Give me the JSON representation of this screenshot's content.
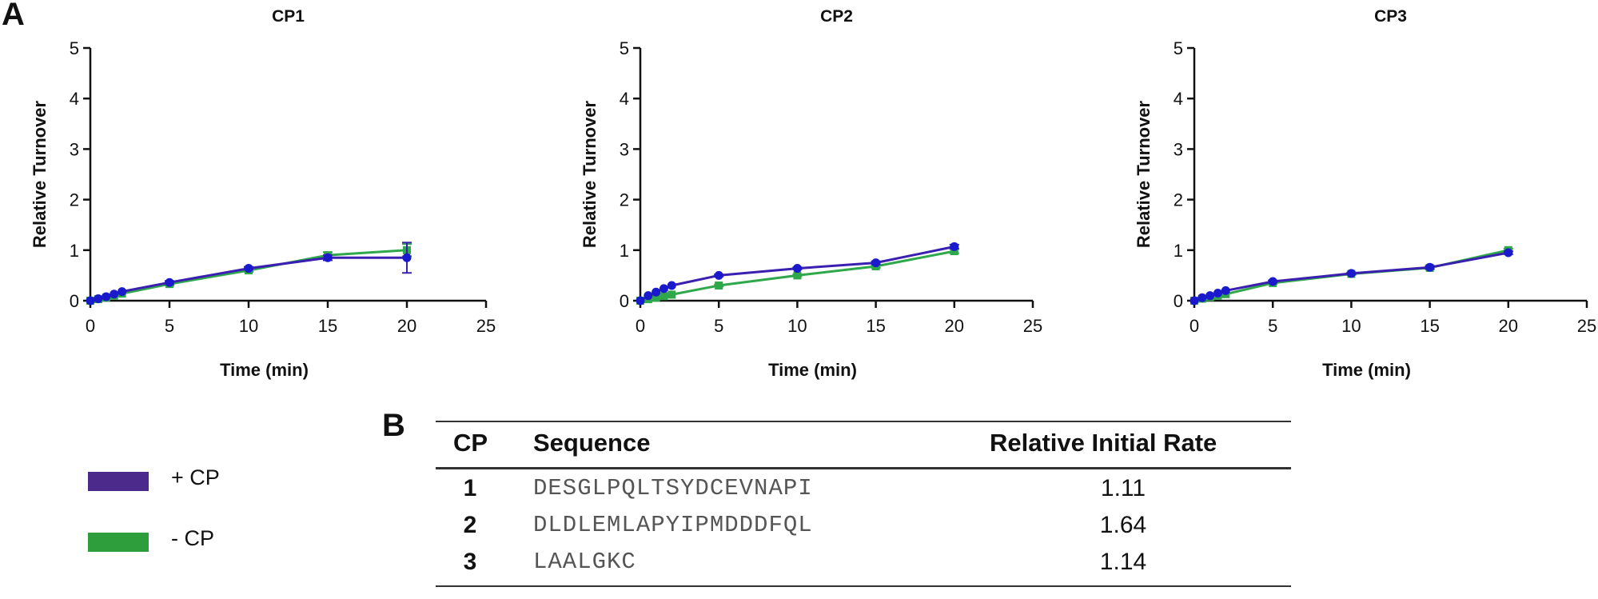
{
  "panel_a_label": "A",
  "panel_b_label": "B",
  "colors": {
    "plus_cp": "#3a1fb0",
    "minus_cp": "#2ea84a",
    "plus_cp_marker": "#1a1acc",
    "legend_plus": "#4b2a8c",
    "legend_minus": "#2e9e3c"
  },
  "chart_data": [
    {
      "type": "line",
      "title": "CP1",
      "xlabel": "Time (min)",
      "ylabel": "Relative Turnover",
      "xlim": [
        0,
        25
      ],
      "ylim": [
        0,
        5
      ],
      "xticks": [
        0,
        5,
        10,
        15,
        20,
        25
      ],
      "yticks": [
        0,
        1,
        2,
        3,
        4,
        5
      ],
      "series": [
        {
          "name": "- CP",
          "color": "#2ea84a",
          "x": [
            0,
            0.5,
            1,
            1.5,
            2,
            5,
            10,
            15,
            20
          ],
          "y": [
            0,
            0.03,
            0.06,
            0.1,
            0.14,
            0.33,
            0.6,
            0.9,
            1.0
          ],
          "err": [
            0,
            0,
            0,
            0,
            0,
            0.03,
            0.03,
            0.06,
            0.12
          ]
        },
        {
          "name": "+ CP",
          "color": "#3a1fb0",
          "x": [
            0,
            0.5,
            1,
            1.5,
            2,
            5,
            10,
            15,
            20
          ],
          "y": [
            0,
            0.04,
            0.08,
            0.13,
            0.18,
            0.36,
            0.64,
            0.85,
            0.85
          ],
          "err": [
            0,
            0,
            0,
            0,
            0,
            0.03,
            0.03,
            0.05,
            0.3
          ]
        }
      ]
    },
    {
      "type": "line",
      "title": "CP2",
      "xlabel": "Time (min)",
      "ylabel": "Relative Turnover",
      "xlim": [
        0,
        25
      ],
      "ylim": [
        0,
        5
      ],
      "xticks": [
        0,
        5,
        10,
        15,
        20,
        25
      ],
      "yticks": [
        0,
        1,
        2,
        3,
        4,
        5
      ],
      "series": [
        {
          "name": "- CP",
          "color": "#2ea84a",
          "x": [
            0,
            0.5,
            1,
            1.5,
            2,
            5,
            10,
            15,
            20
          ],
          "y": [
            0,
            0.03,
            0.06,
            0.09,
            0.12,
            0.3,
            0.5,
            0.68,
            0.98
          ],
          "err": [
            0,
            0,
            0,
            0,
            0,
            0.02,
            0.02,
            0.03,
            0.04
          ]
        },
        {
          "name": "+ CP",
          "color": "#3a1fb0",
          "x": [
            0,
            0.5,
            1,
            1.5,
            2,
            5,
            10,
            15,
            20
          ],
          "y": [
            0,
            0.1,
            0.17,
            0.24,
            0.3,
            0.5,
            0.64,
            0.75,
            1.07
          ],
          "err": [
            0,
            0,
            0,
            0,
            0,
            0.02,
            0.02,
            0.03,
            0.04
          ]
        }
      ]
    },
    {
      "type": "line",
      "title": "CP3",
      "xlabel": "Time (min)",
      "ylabel": "Relative Turnover",
      "xlim": [
        0,
        25
      ],
      "ylim": [
        0,
        5
      ],
      "xticks": [
        0,
        5,
        10,
        15,
        20,
        25
      ],
      "yticks": [
        0,
        1,
        2,
        3,
        4,
        5
      ],
      "series": [
        {
          "name": "- CP",
          "color": "#2ea84a",
          "x": [
            0,
            0.5,
            1,
            1.5,
            2,
            5,
            10,
            15,
            20
          ],
          "y": [
            0,
            0.04,
            0.07,
            0.1,
            0.13,
            0.35,
            0.53,
            0.65,
            1.0
          ],
          "err": [
            0,
            0,
            0,
            0,
            0,
            0.02,
            0.02,
            0.03,
            0.03
          ]
        },
        {
          "name": "+ CP",
          "color": "#3a1fb0",
          "x": [
            0,
            0.5,
            1,
            1.5,
            2,
            5,
            10,
            15,
            20
          ],
          "y": [
            0,
            0.06,
            0.1,
            0.15,
            0.2,
            0.38,
            0.54,
            0.66,
            0.95
          ],
          "err": [
            0,
            0,
            0,
            0,
            0,
            0.02,
            0.02,
            0.03,
            0.03
          ]
        }
      ]
    }
  ],
  "legend": [
    {
      "label": "+ CP",
      "color": "#4b2a8c"
    },
    {
      "label": "- CP",
      "color": "#2e9e3c"
    }
  ],
  "table": {
    "headers": {
      "cp": "CP",
      "sequence": "Sequence",
      "rate": "Relative Initial Rate"
    },
    "rows": [
      {
        "cp": "1",
        "sequence": "DESGLPQLTSYDCEVNAPI",
        "rate": "1.11"
      },
      {
        "cp": "2",
        "sequence": "DLDLEMLAPYIPMDDDFQL",
        "rate": "1.64"
      },
      {
        "cp": "3",
        "sequence": "LAALGKC",
        "rate": "1.14"
      }
    ]
  }
}
